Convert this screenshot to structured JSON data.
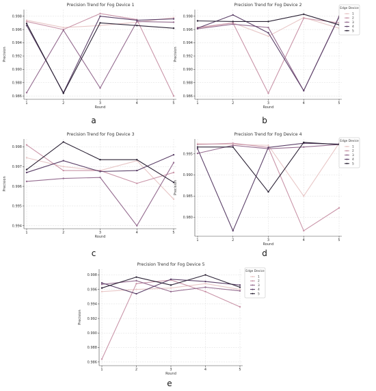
{
  "figure": {
    "subfigure_labels": [
      "a",
      "b",
      "c",
      "d",
      "e"
    ]
  },
  "series_colors": [
    "#e8c7c7",
    "#c994a8",
    "#946b8f",
    "#5b4068",
    "#2b2235"
  ],
  "chart_data": [
    {
      "type": "line",
      "title": "Precision Trend for Fog Device 1",
      "xlabel": "Round",
      "ylabel": "Precision",
      "x": [
        1,
        2,
        3,
        4,
        5
      ],
      "xticks": [
        "1",
        "2",
        "3",
        "4",
        "5"
      ],
      "ylim": [
        0.9855,
        0.999
      ],
      "yticks": [
        0.986,
        0.988,
        0.99,
        0.992,
        0.994,
        0.996,
        0.998
      ],
      "ytick_labels": [
        "0.986",
        "0.988",
        "0.990",
        "0.992",
        "0.994",
        "0.996",
        "0.998"
      ],
      "grid": true,
      "legend": null,
      "series": [
        {
          "name": "1",
          "values": [
            0.9974,
            0.9963,
            0.9966,
            0.9971,
            0.9978
          ]
        },
        {
          "name": "2",
          "values": [
            0.9972,
            0.996,
            0.9984,
            0.9975,
            0.986
          ]
        },
        {
          "name": "3",
          "values": [
            0.9865,
            0.9959,
            0.9872,
            0.9972,
            0.9971
          ]
        },
        {
          "name": "4",
          "values": [
            0.9966,
            0.9865,
            0.998,
            0.9974,
            0.9976
          ]
        },
        {
          "name": "5",
          "values": [
            0.9969,
            0.9864,
            0.997,
            0.9966,
            0.9962
          ]
        }
      ]
    },
    {
      "type": "line",
      "title": "Precision Trend for Fog Device 2",
      "xlabel": "Round",
      "ylabel": "Precision",
      "x": [
        1,
        2,
        3,
        4,
        5
      ],
      "xticks": [
        "1",
        "2",
        "3",
        "4",
        "5"
      ],
      "ylim": [
        0.9855,
        0.999
      ],
      "yticks": [
        0.986,
        0.988,
        0.99,
        0.992,
        0.994,
        0.996,
        0.998
      ],
      "ytick_labels": [
        "0.986",
        "0.988",
        "0.990",
        "0.992",
        "0.994",
        "0.996",
        "0.998"
      ],
      "grid": true,
      "legend": {
        "title": "Edge Device",
        "position": "outside-right",
        "entries": [
          "1",
          "2",
          "3",
          "4",
          "5"
        ]
      },
      "series": [
        {
          "name": "1",
          "values": [
            0.9962,
            0.997,
            0.995,
            0.9978,
            0.9962
          ]
        },
        {
          "name": "2",
          "values": [
            0.9963,
            0.997,
            0.9864,
            0.9977,
            0.997
          ]
        },
        {
          "name": "3",
          "values": [
            0.9961,
            0.9968,
            0.9963,
            0.9868,
            0.998
          ]
        },
        {
          "name": "4",
          "values": [
            0.9962,
            0.9982,
            0.9955,
            0.9868,
            0.9979
          ]
        },
        {
          "name": "5",
          "values": [
            0.9973,
            0.9972,
            0.9972,
            0.9983,
            0.9967
          ]
        }
      ]
    },
    {
      "type": "line",
      "title": "Precision Trend for Fog Device 3",
      "xlabel": "Round",
      "ylabel": "Precision",
      "x": [
        1,
        2,
        3,
        4,
        5
      ],
      "xticks": [
        "1",
        "2",
        "3",
        "4",
        "5"
      ],
      "ylim": [
        0.99385,
        0.9984
      ],
      "yticks": [
        0.994,
        0.995,
        0.996,
        0.997,
        0.998
      ],
      "ytick_labels": [
        "0.994",
        "0.995",
        "0.996",
        "0.997",
        "0.998"
      ],
      "grid": true,
      "legend": null,
      "series": [
        {
          "name": "1",
          "values": [
            0.99745,
            0.997,
            0.9968,
            0.9973,
            0.99535
          ]
        },
        {
          "name": "2",
          "values": [
            0.9981,
            0.9968,
            0.9968,
            0.99615,
            0.9967
          ]
        },
        {
          "name": "3",
          "values": [
            0.99625,
            0.9964,
            0.99645,
            0.994,
            0.9972
          ]
        },
        {
          "name": "4",
          "values": [
            0.9967,
            0.9973,
            0.99675,
            0.9968,
            0.9976
          ]
        },
        {
          "name": "5",
          "values": [
            0.99685,
            0.99825,
            0.99735,
            0.99735,
            0.9962
          ]
        }
      ]
    },
    {
      "type": "line",
      "title": "Precision Trend for Fog Device 4",
      "xlabel": "Round",
      "ylabel": "Precision",
      "x": [
        1,
        2,
        3,
        4,
        5
      ],
      "xticks": [
        "1",
        "2",
        "3",
        "4",
        "5"
      ],
      "ylim": [
        0.9755,
        0.9985
      ],
      "yticks": [
        0.98,
        0.985,
        0.99,
        0.995
      ],
      "ytick_labels": [
        "0.980",
        "0.985",
        "0.990",
        "0.995"
      ],
      "grid": true,
      "legend": {
        "title": "Edge Device",
        "position": "outside-right",
        "entries": [
          "1",
          "2",
          "3",
          "4",
          "5"
        ]
      },
      "series": [
        {
          "name": "1",
          "values": [
            0.9974,
            0.9972,
            0.997,
            0.985,
            0.9975
          ]
        },
        {
          "name": "2",
          "values": [
            0.9972,
            0.9975,
            0.9965,
            0.9768,
            0.9822
          ]
        },
        {
          "name": "3",
          "values": [
            0.9951,
            0.997,
            0.9962,
            0.9966,
            0.9972
          ]
        },
        {
          "name": "4",
          "values": [
            0.9962,
            0.9768,
            0.9965,
            0.9975,
            0.9973
          ]
        },
        {
          "name": "5",
          "values": [
            0.9966,
            0.9966,
            0.986,
            0.9977,
            0.9972
          ]
        }
      ]
    },
    {
      "type": "line",
      "title": "Precision Trend for Fog Device 5",
      "xlabel": "Round",
      "ylabel": "Precision",
      "x": [
        1,
        2,
        3,
        4,
        5
      ],
      "xticks": [
        "1",
        "2",
        "3",
        "4",
        "5"
      ],
      "ylim": [
        0.9855,
        0.9988
      ],
      "yticks": [
        0.986,
        0.988,
        0.99,
        0.992,
        0.994,
        0.996,
        0.998
      ],
      "ytick_labels": [
        "0.986",
        "0.988",
        "0.990",
        "0.992",
        "0.994",
        "0.996",
        "0.998"
      ],
      "grid": true,
      "legend": {
        "title": "Edge Device",
        "position": "outside-right",
        "entries": [
          "1",
          "2",
          "3",
          "4",
          "5"
        ]
      },
      "series": [
        {
          "name": "1",
          "values": [
            0.9957,
            0.996,
            0.9962,
            0.9968,
            0.996
          ]
        },
        {
          "name": "2",
          "values": [
            0.9864,
            0.9968,
            0.9973,
            0.9957,
            0.9936
          ]
        },
        {
          "name": "3",
          "values": [
            0.9967,
            0.9972,
            0.9957,
            0.9963,
            0.9958
          ]
        },
        {
          "name": "4",
          "values": [
            0.9969,
            0.9954,
            0.9974,
            0.9971,
            0.9966
          ]
        },
        {
          "name": "5",
          "values": [
            0.9962,
            0.9977,
            0.9966,
            0.998,
            0.9963
          ]
        }
      ]
    }
  ]
}
